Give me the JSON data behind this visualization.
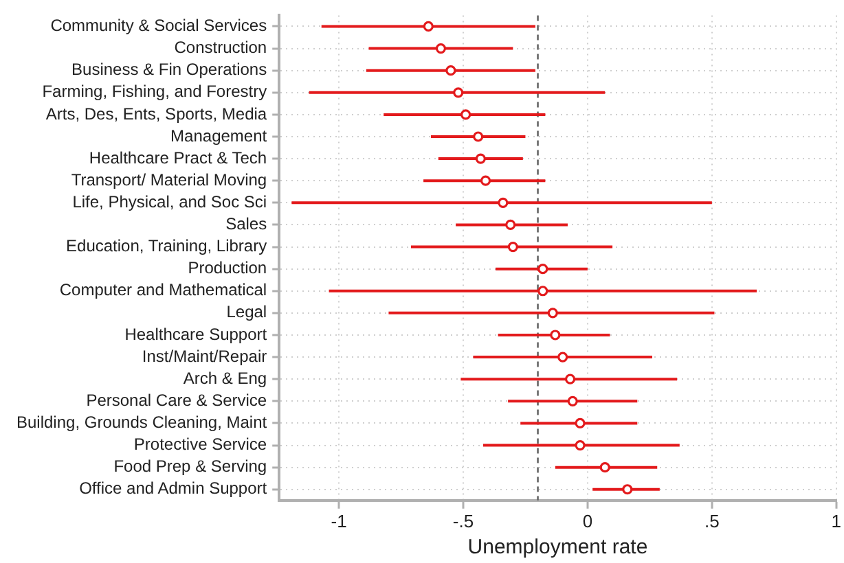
{
  "chart_data": {
    "type": "scatter",
    "orientation": "horizontal",
    "categories": [
      "Community & Social Services",
      "Construction",
      "Business & Fin Operations",
      "Farming, Fishing, and Forestry",
      "Arts, Des, Ents, Sports, Media",
      "Management",
      "Healthcare Pract & Tech",
      "Transport/ Material Moving",
      "Life, Physical, and Soc Sci",
      "Sales",
      "Education, Training, Library",
      "Production",
      "Computer and Mathematical",
      "Legal",
      "Healthcare Support",
      "Inst/Maint/Repair",
      "Arch & Eng",
      "Personal Care & Service",
      "Building, Grounds Cleaning, Maint",
      "Protective Service",
      "Food Prep & Serving",
      "Office and Admin Support"
    ],
    "values": [
      -0.64,
      -0.59,
      -0.55,
      -0.52,
      -0.49,
      -0.44,
      -0.43,
      -0.41,
      -0.34,
      -0.31,
      -0.3,
      -0.18,
      -0.18,
      -0.14,
      -0.13,
      -0.1,
      -0.07,
      -0.06,
      -0.03,
      -0.03,
      0.07,
      0.16
    ],
    "errors": [
      [
        -1.07,
        -0.21
      ],
      [
        -0.88,
        -0.3
      ],
      [
        -0.89,
        -0.21
      ],
      [
        -1.12,
        0.07
      ],
      [
        -0.82,
        -0.17
      ],
      [
        -0.63,
        -0.25
      ],
      [
        -0.6,
        -0.26
      ],
      [
        -0.66,
        -0.17
      ],
      [
        -1.19,
        0.5
      ],
      [
        -0.53,
        -0.08
      ],
      [
        -0.71,
        0.1
      ],
      [
        -0.37,
        0.0
      ],
      [
        -1.04,
        0.68
      ],
      [
        -0.8,
        0.51
      ],
      [
        -0.36,
        0.09
      ],
      [
        -0.46,
        0.26
      ],
      [
        -0.51,
        0.36
      ],
      [
        -0.32,
        0.2
      ],
      [
        -0.27,
        0.2
      ],
      [
        -0.42,
        0.37
      ],
      [
        -0.13,
        0.28
      ],
      [
        0.02,
        0.29
      ]
    ],
    "color": "#e31a1c",
    "marker": "circle",
    "xlim": [
      -1.24,
      1
    ],
    "xticks": [
      -1,
      {
        "value": -0.5,
        "label": "-.5"
      },
      0,
      {
        "value": 0.5,
        "label": ".5"
      },
      1
    ],
    "xlabel": "Unemployment rate",
    "ref_lines": [
      {
        "axis": "x",
        "value": -0.2,
        "line_style": "dashed",
        "color": "#666666"
      }
    ],
    "grid": true
  }
}
